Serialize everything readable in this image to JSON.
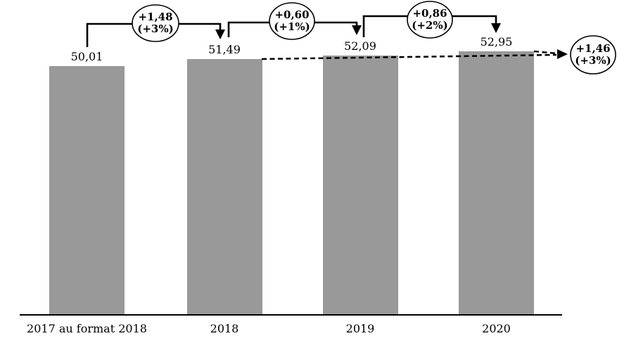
{
  "chart_data": {
    "type": "bar",
    "title": "",
    "xlabel": "",
    "ylabel": "",
    "categories": [
      "2017 au format 2018",
      "2018",
      "2019",
      "2020"
    ],
    "values": [
      50.01,
      51.49,
      52.09,
      52.95
    ],
    "value_labels": [
      "50,01",
      "51,49",
      "52,09",
      "52,95"
    ],
    "bar_color": "#999999",
    "axis_color": "#000000",
    "ylim": [
      0,
      63
    ],
    "grid": false,
    "legend": "none",
    "annotations": [
      {
        "delta": "+1,48",
        "pct": "(+3%)",
        "from": "2017 au format 2018",
        "to": "2018",
        "style": "solid-bracket-arrow"
      },
      {
        "delta": "+0,60",
        "pct": "(+1%)",
        "from": "2018",
        "to": "2019",
        "style": "solid-bracket-arrow"
      },
      {
        "delta": "+0,86",
        "pct": "(+2%)",
        "from": "2019",
        "to": "2020",
        "style": "solid-bracket-arrow"
      },
      {
        "delta": "+1,46",
        "pct": "(+3%)",
        "from": "2018",
        "to": "2020",
        "style": "dashed-arrow"
      }
    ]
  }
}
